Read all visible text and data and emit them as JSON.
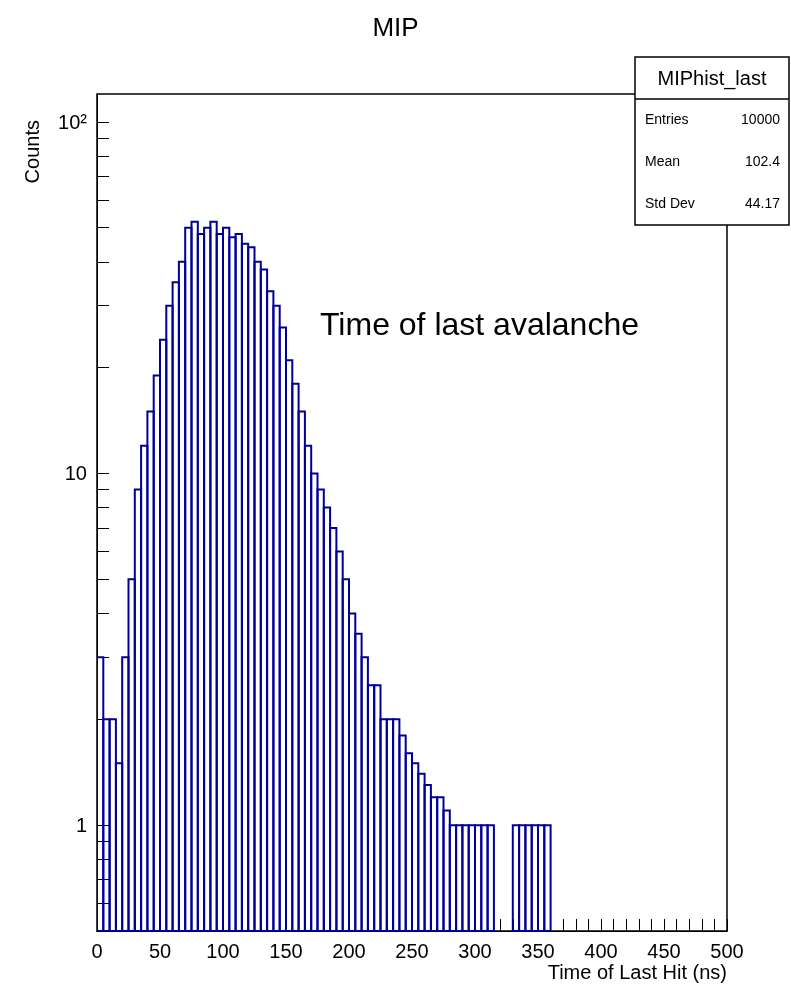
{
  "chart_data": {
    "type": "histogram",
    "title": "MIP",
    "xlabel": "Time of Last Hit (ns)",
    "ylabel": "Counts",
    "annotations": [
      "Time of last avalanche",
      "MIPhist_last",
      "Entries",
      "10000",
      "Mean",
      "102.4",
      "Std Dev",
      "44.17"
    ],
    "log": "y",
    "grid": false,
    "color": "#000099",
    "xlim": [
      0,
      500
    ],
    "ylim": [
      0.5,
      120
    ],
    "xticks": [
      0,
      {
        "value": 10,
        "label": null
      },
      {
        "value": 20,
        "label": null
      },
      {
        "value": 30,
        "label": null
      },
      {
        "value": 40,
        "label": null
      },
      50,
      {
        "value": 60,
        "label": null
      },
      {
        "value": 70,
        "label": null
      },
      {
        "value": 80,
        "label": null
      },
      {
        "value": 90,
        "label": null
      },
      100,
      {
        "value": 110,
        "label": null
      },
      {
        "value": 120,
        "label": null
      },
      {
        "value": 130,
        "label": null
      },
      {
        "value": 140,
        "label": null
      },
      150,
      {
        "value": 160,
        "label": null
      },
      {
        "value": 170,
        "label": null
      },
      {
        "value": 180,
        "label": null
      },
      {
        "value": 190,
        "label": null
      },
      200,
      {
        "value": 210,
        "label": null
      },
      {
        "value": 220,
        "label": null
      },
      {
        "value": 230,
        "label": null
      },
      {
        "value": 240,
        "label": null
      },
      250,
      {
        "value": 260,
        "label": null
      },
      {
        "value": 270,
        "label": null
      },
      {
        "value": 280,
        "label": null
      },
      {
        "value": 290,
        "label": null
      },
      300,
      {
        "value": 310,
        "label": null
      },
      {
        "value": 320,
        "label": null
      },
      {
        "value": 330,
        "label": null
      },
      {
        "value": 340,
        "label": null
      },
      350,
      {
        "value": 360,
        "label": null
      },
      {
        "value": 370,
        "label": null
      },
      {
        "value": 380,
        "label": null
      },
      {
        "value": 390,
        "label": null
      },
      400,
      {
        "value": 410,
        "label": null
      },
      {
        "value": 420,
        "label": null
      },
      {
        "value": 430,
        "label": null
      },
      {
        "value": 440,
        "label": null
      },
      450,
      {
        "value": 460,
        "label": null
      },
      {
        "value": 470,
        "label": null
      },
      {
        "value": 480,
        "label": null
      },
      {
        "value": 490,
        "label": null
      },
      500
    ],
    "yticks": [
      {
        "value": 0.6,
        "label": null
      },
      {
        "value": 0.7,
        "label": null
      },
      {
        "value": 0.8,
        "label": null
      },
      {
        "value": 0.9,
        "label": null
      },
      1,
      {
        "value": 2,
        "label": null
      },
      {
        "value": 3,
        "label": null
      },
      {
        "value": 4,
        "label": null
      },
      {
        "value": 5,
        "label": null
      },
      {
        "value": 6,
        "label": null
      },
      {
        "value": 7,
        "label": null
      },
      {
        "value": 8,
        "label": null
      },
      {
        "value": 9,
        "label": null
      },
      10,
      {
        "value": 20,
        "label": null
      },
      {
        "value": 30,
        "label": null
      },
      {
        "value": 40,
        "label": null
      },
      {
        "value": 50,
        "label": null
      },
      {
        "value": 60,
        "label": null
      },
      {
        "value": 70,
        "label": null
      },
      {
        "value": 80,
        "label": null
      },
      {
        "value": 90,
        "label": null
      },
      {
        "value": 100,
        "label": "10²"
      }
    ],
    "bins": [
      0,
      5,
      10,
      15,
      20,
      25,
      30,
      35,
      40,
      45,
      50,
      55,
      60,
      65,
      70,
      75,
      80,
      85,
      90,
      95,
      100,
      105,
      110,
      115,
      120,
      125,
      130,
      135,
      140,
      145,
      150,
      155,
      160,
      165,
      170,
      175,
      180,
      185,
      190,
      195,
      200,
      205,
      210,
      215,
      220,
      225,
      230,
      235,
      240,
      245,
      250,
      255,
      260,
      265,
      270,
      275,
      280,
      285,
      290,
      295,
      300,
      305,
      310,
      315,
      320,
      325,
      330,
      335,
      340,
      345,
      350,
      355,
      360
    ],
    "values": [
      3,
      2,
      2,
      1.5,
      3,
      5,
      9,
      12,
      15,
      19,
      24,
      30,
      35,
      40,
      50,
      52,
      48,
      50,
      52,
      48,
      50,
      47,
      48,
      45,
      44,
      40,
      38,
      33,
      30,
      26,
      21,
      18,
      15,
      12,
      10,
      9,
      8,
      7,
      6,
      5,
      4,
      3.5,
      3,
      2.5,
      2.5,
      2,
      2,
      2,
      1.8,
      1.6,
      1.5,
      1.4,
      1.3,
      1.2,
      1.2,
      1.1,
      1,
      1,
      1,
      1,
      1,
      1,
      1,
      null,
      null,
      null,
      1,
      1,
      1,
      1,
      1,
      1
    ]
  }
}
